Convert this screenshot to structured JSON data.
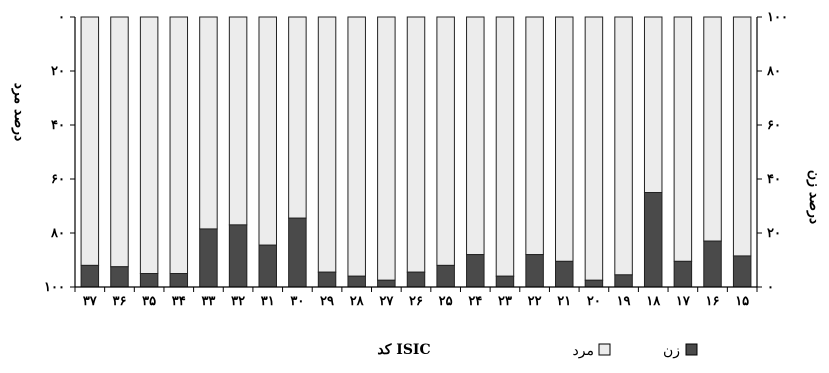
{
  "chart_data": {
    "type": "bar",
    "stacked": true,
    "percent_stacked": true,
    "categories": [
      "۳۷",
      "۳۶",
      "۳۵",
      "۳۴",
      "۳۳",
      "۳۲",
      "۳۱",
      "۳۰",
      "۲۹",
      "۲۸",
      "۲۷",
      "۲۶",
      "۲۵",
      "۲۴",
      "۲۳",
      "۲۲",
      "۲۱",
      "۲۰",
      "۱۹",
      "۱۸",
      "۱۷",
      "۱۶",
      "۱۵"
    ],
    "series": [
      {
        "name": "زن",
        "color": "#4a4a4a",
        "values": [
          8,
          7.5,
          5,
          5,
          21.5,
          23,
          15.5,
          25.5,
          5.5,
          4,
          2.5,
          5.5,
          8,
          12,
          4,
          12,
          9.5,
          2.5,
          4.5,
          35,
          9.5,
          17,
          11.5
        ]
      },
      {
        "name": "مرد",
        "color": "#ececec",
        "values": [
          92,
          92.5,
          95,
          95,
          78.5,
          77,
          84.5,
          74.5,
          94.5,
          96,
          97.5,
          94.5,
          92,
          88,
          96,
          88,
          90.5,
          97.5,
          95.5,
          65,
          90.5,
          83,
          88.5
        ]
      }
    ],
    "y_right": {
      "label": "درصد زن",
      "range": [
        0,
        100
      ],
      "ticks": [
        0,
        20,
        40,
        60,
        80,
        100
      ],
      "tick_labels": [
        "۰",
        "۲۰",
        "۴۰",
        "۶۰",
        "۸۰",
        "۱۰۰"
      ]
    },
    "y_left": {
      "label": "درصد مرد",
      "range": [
        0,
        100
      ],
      "inverted": true,
      "ticks": [
        0,
        20,
        40,
        60,
        80,
        100
      ],
      "tick_labels": [
        "۰",
        "۲۰",
        "۴۰",
        "۶۰",
        "۸۰",
        "۱۰۰"
      ]
    },
    "xlabel": "کد ISIC",
    "grid": false,
    "legend_position": "bottom-right",
    "legend_items": [
      {
        "name": "زن",
        "color": "#4a4a4a"
      },
      {
        "name": "مرد",
        "color": "#ececec"
      }
    ]
  }
}
